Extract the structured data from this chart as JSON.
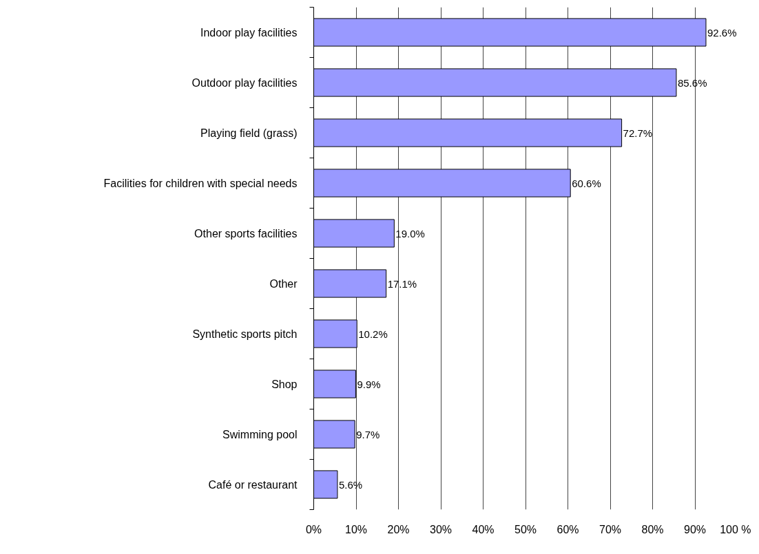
{
  "chart_data": {
    "type": "bar",
    "orientation": "horizontal",
    "categories": [
      "Indoor play facilities",
      "Outdoor play facilities",
      "Playing field (grass)",
      "Facilities for children with special needs",
      "Other sports facilities",
      "Other",
      "Synthetic sports pitch",
      "Shop",
      "Swimming pool",
      "Café or restaurant"
    ],
    "values": [
      92.6,
      85.6,
      72.7,
      60.6,
      19.0,
      17.1,
      10.2,
      9.9,
      9.7,
      5.6
    ],
    "value_labels": [
      "92.6%",
      "85.6%",
      "72.7%",
      "60.6%",
      "19.0%",
      "17.1%",
      "10.2%",
      "9.9%",
      "9.7%",
      "5.6%"
    ],
    "color": "#9999ff",
    "xlim": [
      0,
      100
    ],
    "xticks": [
      {
        "value": 0,
        "label": "0%"
      },
      {
        "value": 10,
        "label": "10%"
      },
      {
        "value": 20,
        "label": "20%"
      },
      {
        "value": 30,
        "label": "30%"
      },
      {
        "value": 40,
        "label": "40%"
      },
      {
        "value": 50,
        "label": "50%"
      },
      {
        "value": 60,
        "label": "60%"
      },
      {
        "value": 70,
        "label": "70%"
      },
      {
        "value": 80,
        "label": "80%"
      },
      {
        "value": 90,
        "label": "90%"
      },
      {
        "value": 100,
        "label": "100 %"
      }
    ],
    "grid": "x"
  }
}
